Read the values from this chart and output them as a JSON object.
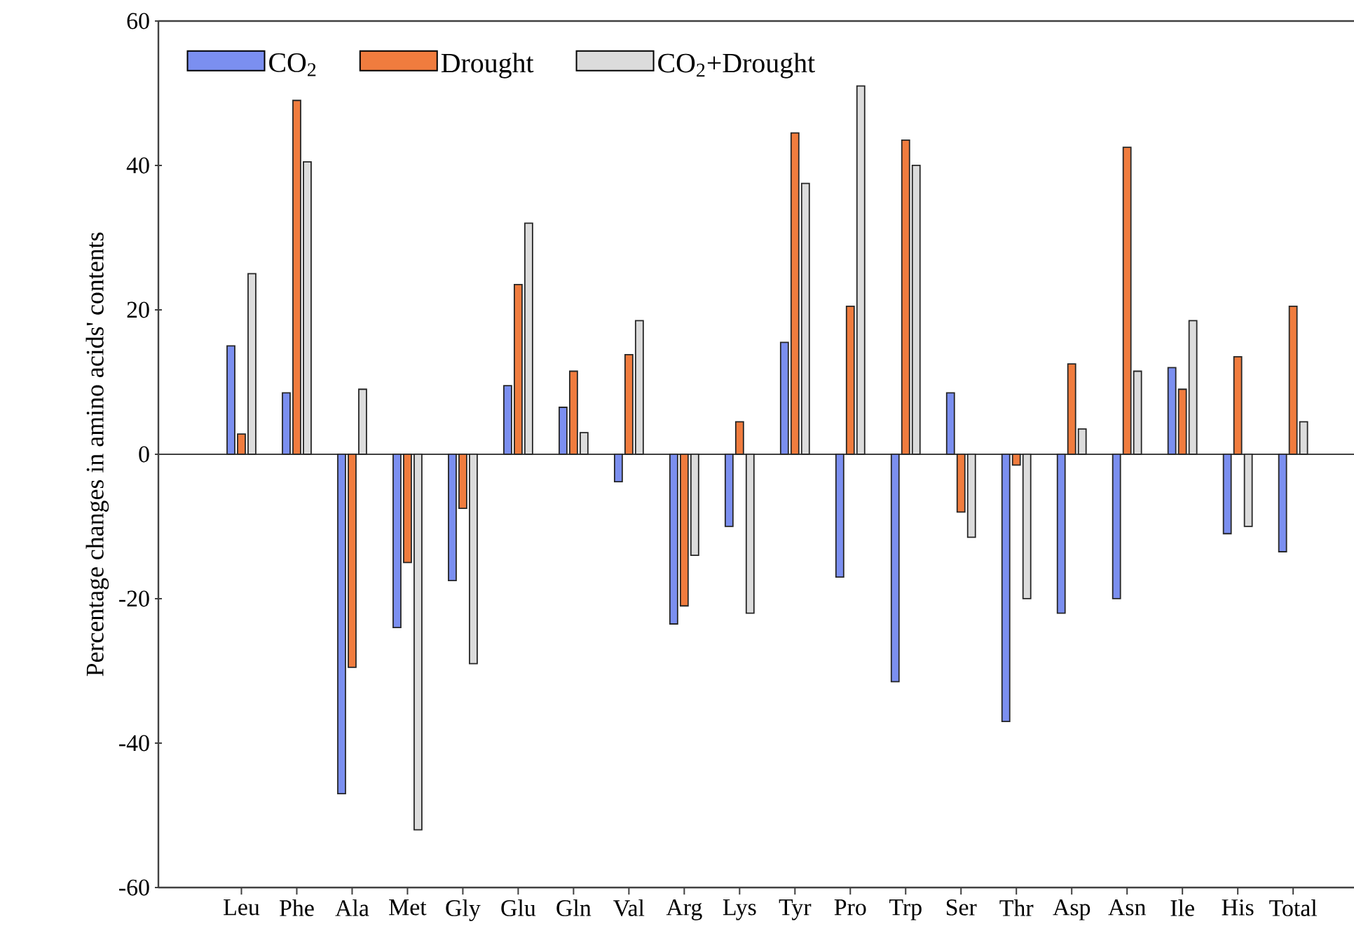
{
  "chart_data": {
    "type": "bar",
    "ylabel": "Percentage changes in amino acids' contents",
    "categories": [
      "Leu",
      "Phe",
      "Ala",
      "Met",
      "Gly",
      "Glu",
      "Gln",
      "Val",
      "Arg",
      "Lys",
      "Tyr",
      "Pro",
      "Trp",
      "Ser",
      "Thr",
      "Asp",
      "Asn",
      "Ile",
      "His",
      "Total"
    ],
    "series": [
      {
        "name": "CO$_{2}$",
        "color": "#7b8ff0",
        "values": [
          15,
          8.5,
          -47,
          -24,
          -17.5,
          9.5,
          6.5,
          -3.8,
          -23.5,
          -10,
          15.5,
          -17,
          -31.5,
          8.5,
          -37,
          -22,
          -20,
          12,
          -11,
          -13.5
        ]
      },
      {
        "name": "Drought",
        "color": "#f07c3e",
        "values": [
          2.8,
          49,
          -29.5,
          -15,
          -7.5,
          23.5,
          11.5,
          13.8,
          -21,
          4.5,
          44.5,
          20.5,
          43.5,
          -8,
          -1.5,
          12.5,
          42.5,
          9,
          13.5,
          20.5
        ]
      },
      {
        "name": "CO$_{2}$+Drought",
        "color": "#dcdcdc",
        "values": [
          25,
          40.5,
          9,
          -52,
          -29,
          32,
          3,
          18.5,
          -14,
          -22,
          37.5,
          51,
          40,
          -11.5,
          -20,
          3.5,
          11.5,
          18.5,
          -10,
          4.5
        ]
      }
    ],
    "ylim": [
      -60,
      60
    ],
    "yticks": [
      -60,
      -40,
      -20,
      0,
      20,
      40,
      60
    ],
    "ref_lines": [
      {
        "axis": "y",
        "value": 0,
        "color": "#404040",
        "line_style": "solid"
      }
    ],
    "legend": "top left"
  }
}
